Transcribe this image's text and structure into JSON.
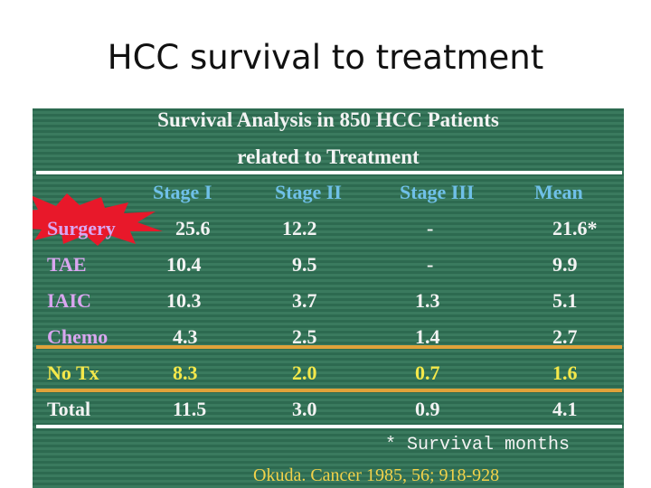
{
  "slide": {
    "title": "HCC survival to treatment"
  },
  "table": {
    "heading_line1": "Survival Analysis in 850 HCC Patients",
    "heading_line2": "related to Treatment",
    "columns": [
      "Stage I",
      "Stage II",
      "Stage III",
      "Mean"
    ],
    "rows": [
      {
        "label": "Surgery",
        "values": [
          "25.6",
          "12.2",
          "-",
          "21.6*"
        ]
      },
      {
        "label": "TAE",
        "values": [
          "10.4",
          "9.5",
          "-",
          "9.9"
        ]
      },
      {
        "label": "IAIC",
        "values": [
          "10.3",
          "3.7",
          "1.3",
          "5.1"
        ]
      },
      {
        "label": "Chemo",
        "values": [
          "4.3",
          "2.5",
          "1.4",
          "2.7"
        ]
      },
      {
        "label": "No Tx",
        "values": [
          "8.3",
          "2.0",
          "0.7",
          "1.6"
        ]
      },
      {
        "label": "Total",
        "values": [
          "11.5",
          "3.0",
          "0.9",
          "4.1"
        ]
      }
    ],
    "footnote": "* Survival months",
    "citation": "Okuda. Cancer 1985, 56; 918-928"
  },
  "colors": {
    "panel_background": "#2d6a50",
    "column_header": "#6fc0e8",
    "row_label": "#d9a6f0",
    "highlight_row": "#f4e84a",
    "separator_orange": "#e0a23a",
    "burst_red": "#e8182a"
  },
  "icons": {
    "surgery_highlight": "red-starburst-icon"
  }
}
